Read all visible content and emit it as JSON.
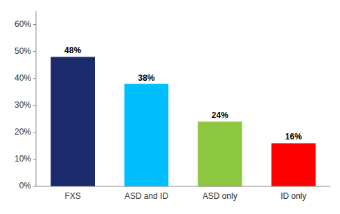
{
  "chart_data": {
    "type": "bar",
    "categories": [
      "FXS",
      "ASD and ID",
      "ASD only",
      "ID only"
    ],
    "values": [
      0.48,
      0.38,
      0.24,
      0.16
    ],
    "value_labels": [
      "48%",
      "38%",
      "24%",
      "16%"
    ],
    "data_labels": true,
    "colors": [
      "#1B2A6B",
      "#00BFFF",
      "#8DC63F",
      "#FF0000"
    ],
    "ylim": [
      0,
      0.65
    ],
    "yticks": [
      {
        "value": 0.0,
        "label": "0%"
      },
      {
        "value": 0.1,
        "label": "10%"
      },
      {
        "value": 0.2,
        "label": "20%"
      },
      {
        "value": 0.3,
        "label": "30%"
      },
      {
        "value": 0.4,
        "label": "40%"
      },
      {
        "value": 0.5,
        "label": "50%"
      },
      {
        "value": 0.6,
        "label": "60%"
      }
    ],
    "grid": false
  }
}
